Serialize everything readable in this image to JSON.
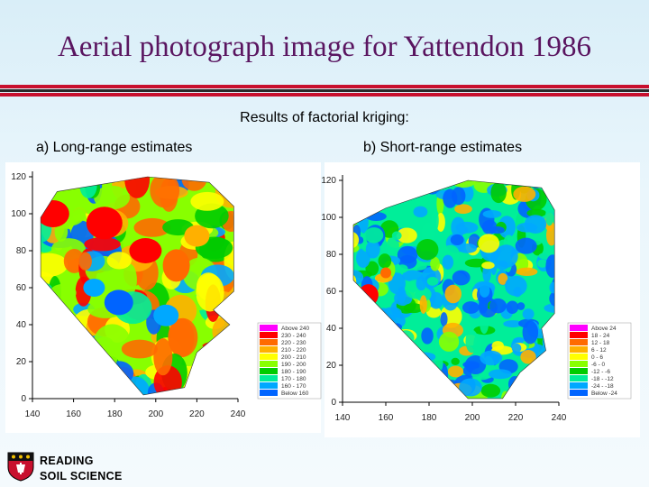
{
  "slide": {
    "title": "Aerial photograph image for Yattendon 1986",
    "subtitle": "Results of factorial kriging:",
    "logo_line1": "READING",
    "logo_line2": "SOIL SCIENCE",
    "colors": {
      "title": "#5a1560",
      "rule_red": "#c8102e",
      "rule_dark": "#2a2a2a"
    }
  },
  "chart_data": [
    {
      "type": "heatmap",
      "label": "a) Long-range estimates",
      "x_ticks": [
        "140",
        "160",
        "180",
        "200",
        "220",
        "240"
      ],
      "y_ticks": [
        "0",
        "20",
        "40",
        "60",
        "80",
        "100",
        "120"
      ],
      "xlim": [
        140,
        240
      ],
      "ylim": [
        0,
        120
      ],
      "legend": {
        "placement": "right",
        "entries": [
          "Above 240",
          "230 - 240",
          "220 - 230",
          "210 - 220",
          "200 - 210",
          "190 - 200",
          "180 - 190",
          "170 - 180",
          "160 - 170",
          "Below 160"
        ],
        "colors": [
          "#ff00ff",
          "#ff0000",
          "#ff6a00",
          "#ffb000",
          "#ffff00",
          "#88ff00",
          "#00cc00",
          "#00ee99",
          "#00a8ff",
          "#0064ff"
        ]
      }
    },
    {
      "type": "heatmap",
      "label": "b) Short-range estimates",
      "x_ticks": [
        "140",
        "160",
        "180",
        "200",
        "220",
        "240"
      ],
      "y_ticks": [
        "0",
        "20",
        "40",
        "60",
        "80",
        "100",
        "120"
      ],
      "xlim": [
        140,
        240
      ],
      "ylim": [
        0,
        120
      ],
      "legend": {
        "placement": "right",
        "entries": [
          "Above 24",
          "18 - 24",
          "12 - 18",
          "6 - 12",
          "0 - 6",
          "-6 - 0",
          "-12 - -6",
          "-18 - -12",
          "-24 - -18",
          "Below -24"
        ],
        "colors": [
          "#ff00ff",
          "#ff0000",
          "#ff6a00",
          "#ffb000",
          "#ffff00",
          "#88ff00",
          "#00cc00",
          "#00ee99",
          "#00a8ff",
          "#0064ff"
        ]
      }
    }
  ]
}
